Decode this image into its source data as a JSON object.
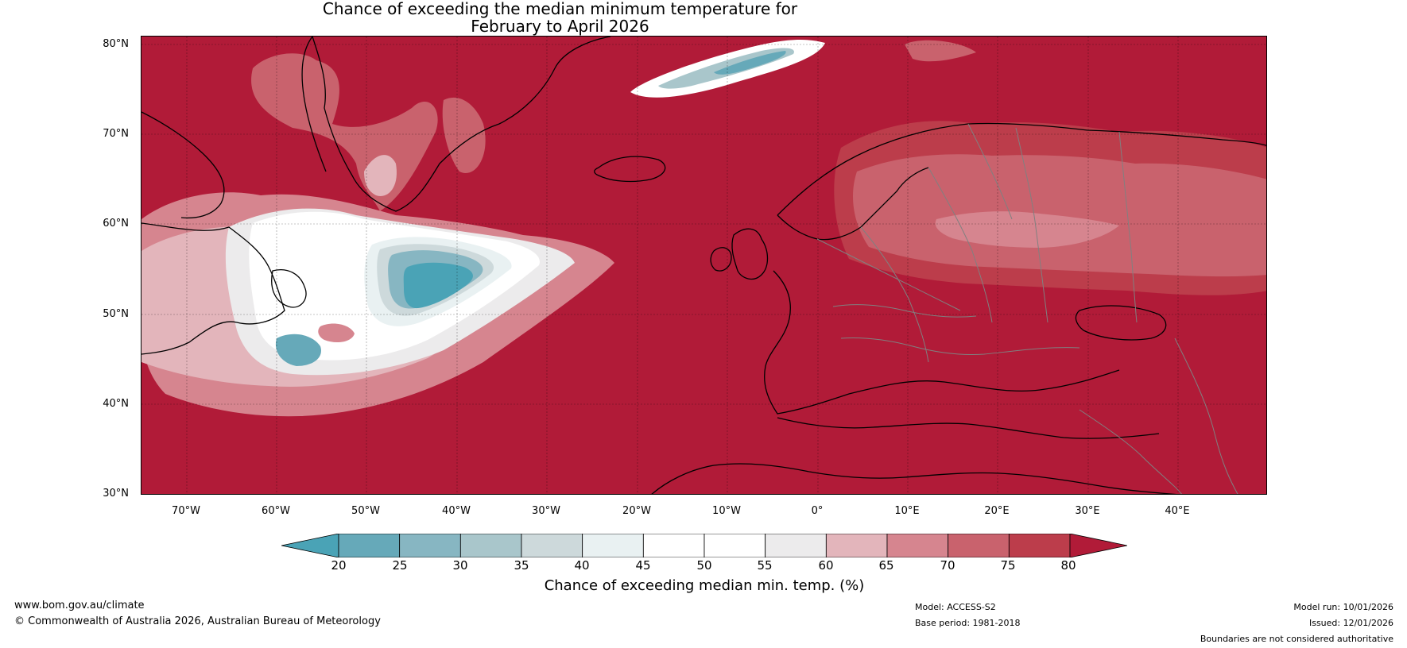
{
  "title": {
    "line1": "Chance of exceeding the median minimum temperature for",
    "line2": "February to April 2026"
  },
  "map": {
    "lat_labels": [
      "80°N",
      "70°N",
      "60°N",
      "50°N",
      "40°N",
      "30°N"
    ],
    "lon_labels": [
      "70°W",
      "60°W",
      "50°W",
      "40°W",
      "30°W",
      "20°W",
      "10°W",
      "0°",
      "10°E",
      "20°E",
      "30°E",
      "40°E"
    ],
    "background_color": "#b11b38",
    "coastline_color": "#000000",
    "border_color": "#808080"
  },
  "colorbar": {
    "ticks": [
      "20",
      "25",
      "30",
      "35",
      "40",
      "45",
      "50",
      "55",
      "60",
      "65",
      "70",
      "75",
      "80"
    ],
    "colors": [
      "#4aa3b6",
      "#66a9b9",
      "#87b6c2",
      "#a9c6cb",
      "#cdd9db",
      "#e9f1f2",
      "#ffffff",
      "#ffffff",
      "#ecebec",
      "#e3b5bb",
      "#d6858f",
      "#c9626d",
      "#bc3d4b",
      "#b11b38"
    ],
    "label": "Chance of exceeding median min. temp. (%)"
  },
  "footer": {
    "website": "www.bom.gov.au/climate",
    "copyright": "© Commonwealth of Australia 2026, Australian Bureau of Meteorology",
    "model": "Model: ACCESS-S2",
    "base_period": "Base period: 1981-2018",
    "model_run": "Model run: 10/01/2026",
    "issued": "Issued: 12/01/2026",
    "disclaimer": "Boundaries are not considered authoritative"
  }
}
